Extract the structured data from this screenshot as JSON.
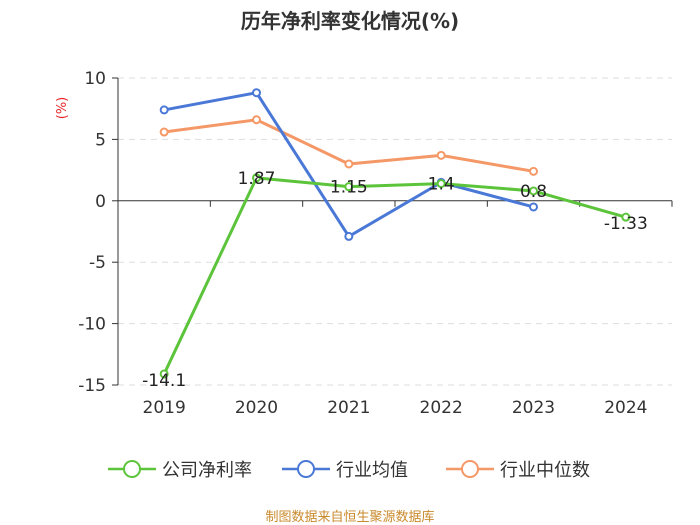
{
  "chart_data": {
    "type": "line",
    "title": "历年净利率变化情况(%)",
    "ylabel": "(%)",
    "xlabel": "",
    "categories": [
      "2019",
      "2020",
      "2021",
      "2022",
      "2023",
      "2024"
    ],
    "ylim": [
      -15,
      10
    ],
    "yticks": [
      10,
      5,
      0,
      -5,
      -10,
      -15
    ],
    "ytick_labels": [
      "10",
      "5",
      "0",
      "-5",
      "-10",
      "-15"
    ],
    "grid": true,
    "series": [
      {
        "name": "公司净利率",
        "color": "#5cc43a",
        "values": [
          -14.1,
          1.87,
          1.15,
          1.4,
          0.8,
          -1.33
        ],
        "labels": [
          "-14.1",
          "1.87",
          "1.15",
          "1.4",
          "0.8",
          "-1.33"
        ]
      },
      {
        "name": "行业均值",
        "color": "#4a78d6",
        "values": [
          7.4,
          8.8,
          -2.9,
          1.5,
          -0.5,
          null
        ]
      },
      {
        "name": "行业中位数",
        "color": "#f59867",
        "values": [
          5.6,
          6.6,
          3.0,
          3.7,
          2.4,
          null
        ]
      }
    ],
    "legend_position": "bottom"
  },
  "source": "制图数据来自恒生聚源数据库"
}
